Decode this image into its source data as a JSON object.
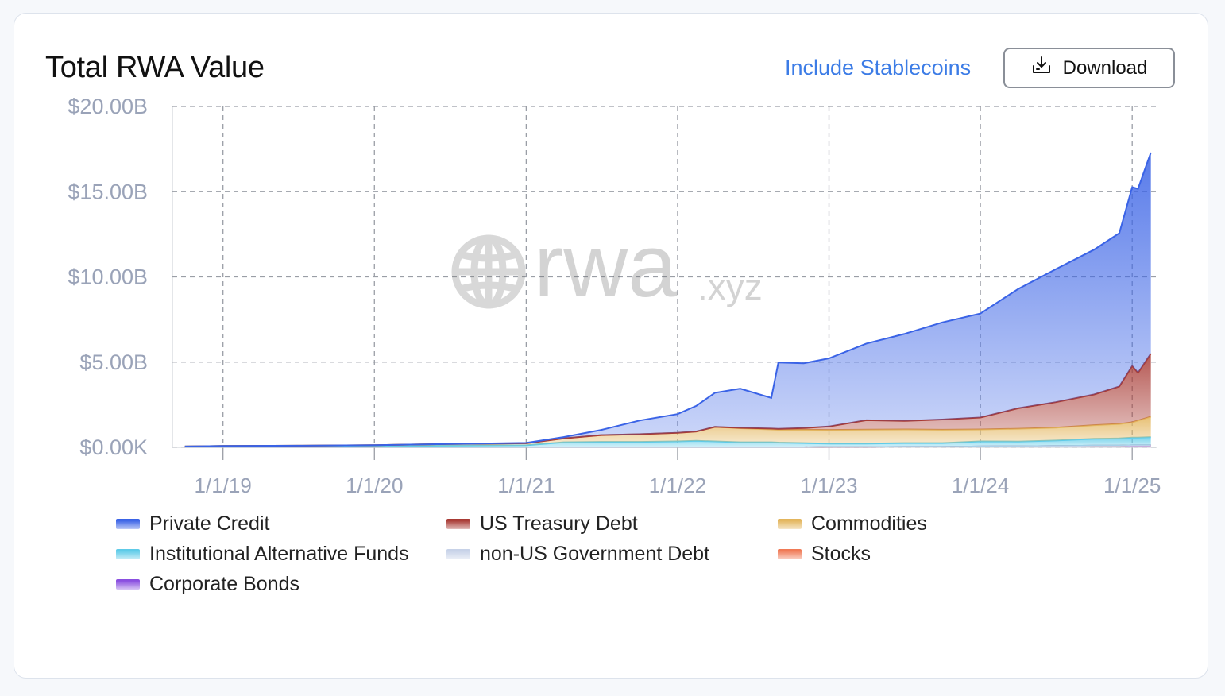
{
  "header": {
    "title": "Total RWA Value",
    "toggle_label": "Include Stablecoins",
    "download_label": "Download"
  },
  "watermark": {
    "brand": "rwa",
    "suffix": ".xyz"
  },
  "chart_data": {
    "type": "area",
    "stacked": true,
    "grid": true,
    "legend_position": "bottom",
    "y_ticks": [
      "$20.00B",
      "$15.00B",
      "$10.00B",
      "$5.00B",
      "$0.00K"
    ],
    "x_ticks": [
      "1/1/19",
      "1/1/20",
      "1/1/21",
      "1/1/22",
      "1/1/23",
      "1/1/24",
      "1/1/25"
    ],
    "ylim": [
      0,
      20
    ],
    "y_unit": "$B",
    "x": [
      "2018-10-01",
      "2019-01-01",
      "2019-07-01",
      "2020-01-01",
      "2020-07-01",
      "2021-01-01",
      "2021-04-01",
      "2021-07-01",
      "2021-10-01",
      "2022-01-01",
      "2022-02-15",
      "2022-04-01",
      "2022-06-01",
      "2022-08-15",
      "2022-09-01",
      "2022-11-01",
      "2023-01-01",
      "2023-04-01",
      "2023-07-01",
      "2023-10-01",
      "2024-01-01",
      "2024-04-01",
      "2024-07-01",
      "2024-10-01",
      "2024-12-01",
      "2025-01-01",
      "2025-01-15",
      "2025-02-15"
    ],
    "series": [
      {
        "name": "Corporate Bonds",
        "color": "#8a4fe0",
        "values": [
          0,
          0,
          0,
          0,
          0,
          0,
          0,
          0,
          0,
          0,
          0,
          0,
          0,
          0,
          0,
          0,
          0.02,
          0.02,
          0.03,
          0.03,
          0.05,
          0.06,
          0.08,
          0.1,
          0.1,
          0.12,
          0.12,
          0.12
        ]
      },
      {
        "name": "Stocks",
        "color": "#f07a56",
        "values": [
          0,
          0,
          0,
          0,
          0,
          0,
          0,
          0,
          0,
          0,
          0,
          0,
          0,
          0,
          0,
          0,
          0,
          0,
          0,
          0,
          0,
          0,
          0,
          0,
          0,
          0,
          0,
          0
        ]
      },
      {
        "name": "non-US Government Debt",
        "color": "#c7d2e8",
        "values": [
          0,
          0,
          0,
          0,
          0,
          0,
          0,
          0,
          0,
          0,
          0,
          0,
          0,
          0,
          0,
          0,
          0,
          0,
          0,
          0,
          0,
          0,
          0,
          0,
          0,
          0,
          0,
          0
        ]
      },
      {
        "name": "Institutional Alternative Funds",
        "color": "#5ecbe8",
        "values": [
          0.05,
          0.08,
          0.08,
          0.08,
          0.1,
          0.12,
          0.3,
          0.32,
          0.32,
          0.35,
          0.38,
          0.35,
          0.3,
          0.3,
          0.28,
          0.25,
          0.2,
          0.2,
          0.22,
          0.22,
          0.3,
          0.28,
          0.32,
          0.4,
          0.42,
          0.45,
          0.45,
          0.48
        ]
      },
      {
        "name": "Commodities",
        "color": "#e3b55c",
        "values": [
          0,
          0,
          0.02,
          0.05,
          0.1,
          0.12,
          0.22,
          0.4,
          0.45,
          0.5,
          0.55,
          0.85,
          0.82,
          0.75,
          0.75,
          0.78,
          0.8,
          0.82,
          0.8,
          0.78,
          0.7,
          0.75,
          0.75,
          0.8,
          0.85,
          0.9,
          1.0,
          1.2
        ]
      },
      {
        "name": "US Treasury Debt",
        "color": "#a83a34",
        "values": [
          0,
          0,
          0,
          0,
          0,
          0,
          0,
          0,
          0,
          0,
          0,
          0,
          0.02,
          0.05,
          0.05,
          0.1,
          0.2,
          0.55,
          0.5,
          0.6,
          0.7,
          1.2,
          1.5,
          1.8,
          2.2,
          3.3,
          2.8,
          3.7
        ]
      },
      {
        "name": "Private Credit",
        "color": "#3a63e6",
        "values": [
          0,
          0,
          0,
          0,
          0,
          0.02,
          0.08,
          0.3,
          0.8,
          1.1,
          1.5,
          2.0,
          2.3,
          1.8,
          3.9,
          3.8,
          4.0,
          4.5,
          5.1,
          5.7,
          6.1,
          7.0,
          7.8,
          8.5,
          9.0,
          10.5,
          10.8,
          11.8
        ]
      }
    ]
  }
}
